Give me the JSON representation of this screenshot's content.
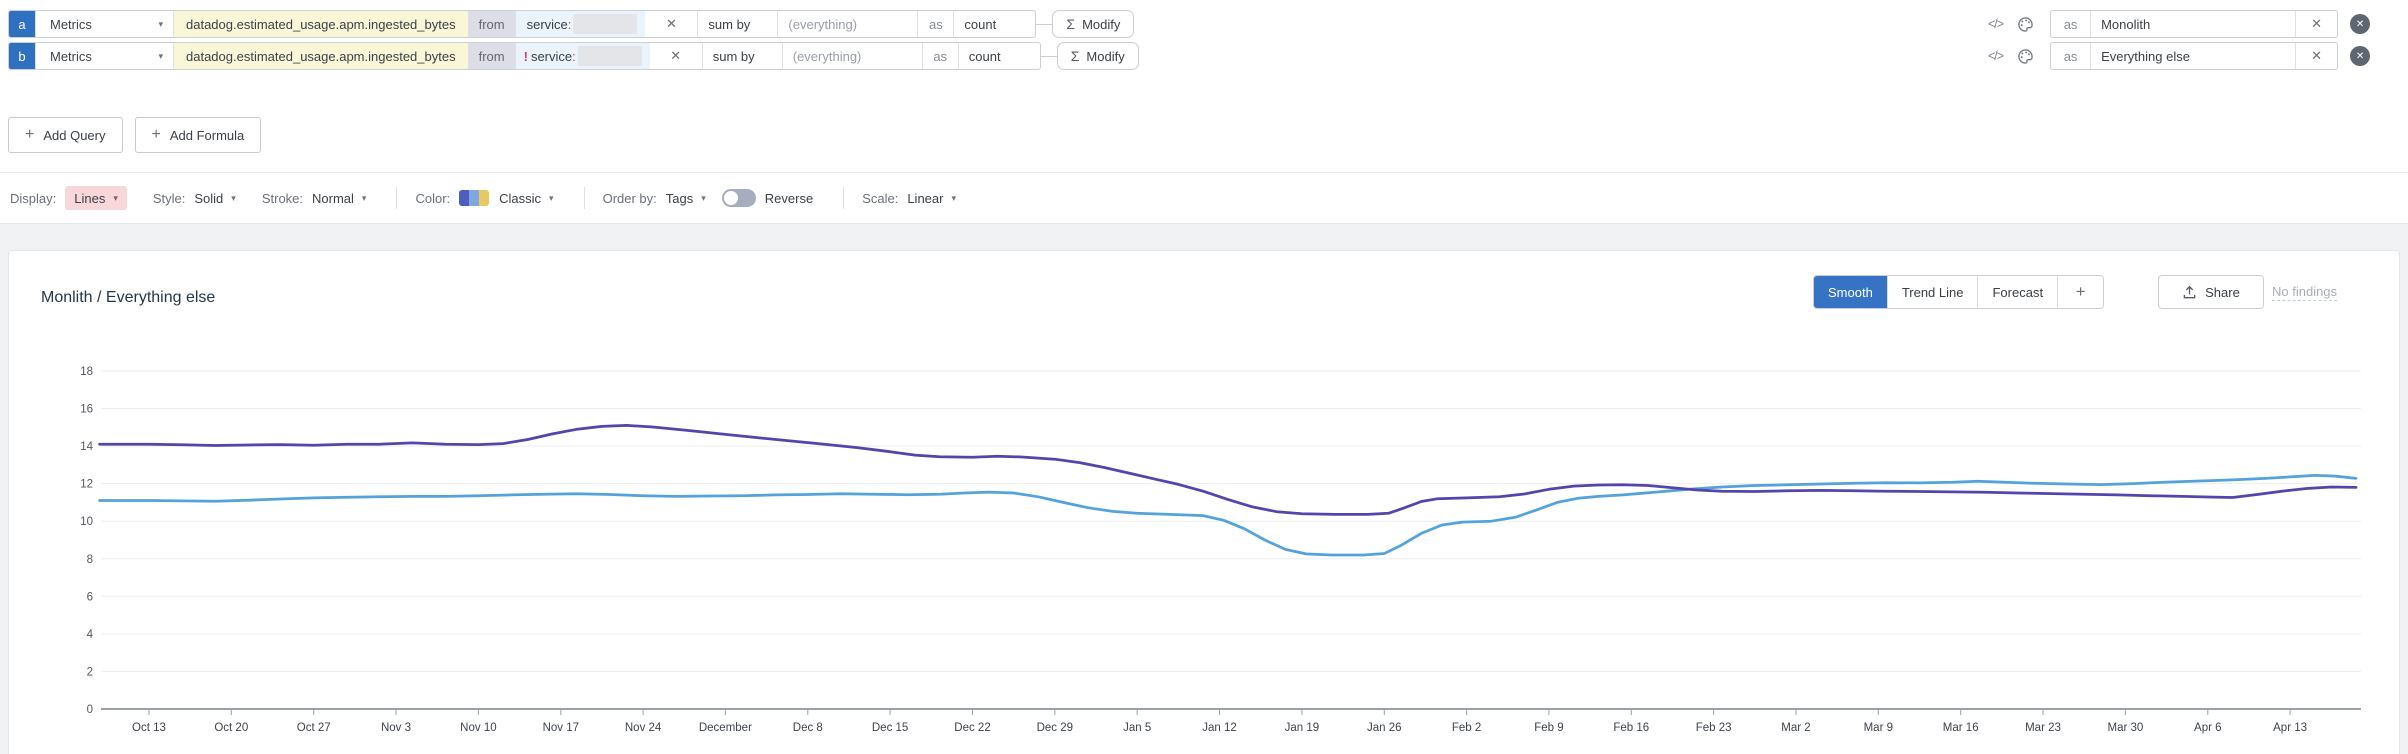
{
  "queries": [
    {
      "letter": "a",
      "source": "Metrics",
      "metric": "datadog.estimated_usage.apm.ingested_bytes",
      "from_label": "from",
      "filter_negation": "",
      "filter_key": "service",
      "filter_colon": ":",
      "remove_filter": "✕",
      "sum_by_label": "sum by",
      "group_placeholder": "(everything)",
      "as_label": "as",
      "rollup": "count",
      "sigma": "Σ",
      "modify_label": "Modify",
      "code_icon": "</>",
      "alias_prefix": "as",
      "alias": "Monolith",
      "clear_alias": "✕",
      "remove_query": "✕"
    },
    {
      "letter": "b",
      "source": "Metrics",
      "metric": "datadog.estimated_usage.apm.ingested_bytes",
      "from_label": "from",
      "filter_negation": "!",
      "filter_key": "service",
      "filter_colon": ":",
      "remove_filter": "✕",
      "sum_by_label": "sum by",
      "group_placeholder": "(everything)",
      "as_label": "as",
      "rollup": "count",
      "sigma": "Σ",
      "modify_label": "Modify",
      "code_icon": "</>",
      "alias_prefix": "as",
      "alias": "Everything else",
      "clear_alias": "✕",
      "remove_query": "✕"
    }
  ],
  "toolbar": {
    "plus": "+",
    "add_query": "Add Query",
    "add_formula": "Add Formula"
  },
  "options": {
    "display_label": "Display:",
    "display_value": "Lines",
    "style_label": "Style:",
    "style_value": "Solid",
    "stroke_label": "Stroke:",
    "stroke_value": "Normal",
    "color_label": "Color:",
    "color_value": "Classic",
    "order_label": "Order by:",
    "order_value": "Tags",
    "reverse_label": "Reverse",
    "scale_label": "Scale:",
    "scale_value": "Linear",
    "caret": "▾"
  },
  "chart": {
    "title": "Monlith / Everything else",
    "buttons": {
      "smooth": "Smooth",
      "trend": "Trend Line",
      "forecast": "Forecast",
      "plus": "+",
      "share": "Share",
      "no_findings": "No findings"
    }
  },
  "colors": {
    "query_badge_blue": "#3070c0",
    "metric_pill_yellow": "#faf7d9",
    "filter_blue": "#ebf3fb",
    "negation_pink": "#cf3c78",
    "lines_chip_pink": "#f7d7da",
    "active_button_blue": "#3673c5",
    "series_monolith_purple": "#5445ae",
    "series_everything_else_blue": "#54a2dc"
  },
  "chart_data": {
    "type": "line",
    "title": "Monlith / Everything else",
    "xlabel": "",
    "ylabel": "",
    "ylim": [
      0,
      18
    ],
    "yticks": [
      0,
      2,
      4,
      6,
      8,
      10,
      12,
      14,
      16,
      18
    ],
    "grid": true,
    "legend_position": "none",
    "x_tick_labels": [
      "Oct 13",
      "Oct 20",
      "Oct 27",
      "Nov 3",
      "Nov 10",
      "Nov 17",
      "Nov 24",
      "December",
      "Dec 8",
      "Dec 15",
      "Dec 22",
      "Dec 29",
      "Jan 5",
      "Jan 12",
      "Jan 19",
      "Jan 26",
      "Feb 2",
      "Feb 9",
      "Feb 16",
      "Feb 23",
      "Mar 2",
      "Mar 9",
      "Mar 16",
      "Mar 23",
      "Mar 30",
      "Apr 6",
      "Apr 13"
    ],
    "x_unit": "weeks offset from Oct 13",
    "series": [
      {
        "name": "Monolith",
        "color": "#5445ae",
        "points": [
          [
            -0.6,
            14.1
          ],
          [
            0,
            14.1
          ],
          [
            0.4,
            14.07
          ],
          [
            0.8,
            14.03
          ],
          [
            1.2,
            14.06
          ],
          [
            1.6,
            14.08
          ],
          [
            2,
            14.04
          ],
          [
            2.4,
            14.1
          ],
          [
            2.8,
            14.1
          ],
          [
            3.2,
            14.17
          ],
          [
            3.6,
            14.1
          ],
          [
            4,
            14.08
          ],
          [
            4.3,
            14.13
          ],
          [
            4.6,
            14.35
          ],
          [
            4.9,
            14.65
          ],
          [
            5.2,
            14.9
          ],
          [
            5.5,
            15.05
          ],
          [
            5.8,
            15.1
          ],
          [
            6.1,
            15.02
          ],
          [
            6.4,
            14.9
          ],
          [
            6.7,
            14.76
          ],
          [
            7,
            14.62
          ],
          [
            7.4,
            14.44
          ],
          [
            7.8,
            14.27
          ],
          [
            8.2,
            14.1
          ],
          [
            8.6,
            13.92
          ],
          [
            9,
            13.7
          ],
          [
            9.3,
            13.52
          ],
          [
            9.6,
            13.43
          ],
          [
            10,
            13.4
          ],
          [
            10.3,
            13.46
          ],
          [
            10.6,
            13.42
          ],
          [
            11,
            13.3
          ],
          [
            11.3,
            13.12
          ],
          [
            11.6,
            12.86
          ],
          [
            11.9,
            12.56
          ],
          [
            12.2,
            12.26
          ],
          [
            12.5,
            11.96
          ],
          [
            12.8,
            11.6
          ],
          [
            13.1,
            11.16
          ],
          [
            13.4,
            10.76
          ],
          [
            13.7,
            10.5
          ],
          [
            14,
            10.4
          ],
          [
            14.4,
            10.36
          ],
          [
            14.8,
            10.36
          ],
          [
            15.05,
            10.42
          ],
          [
            15.25,
            10.72
          ],
          [
            15.45,
            11.05
          ],
          [
            15.65,
            11.2
          ],
          [
            16,
            11.24
          ],
          [
            16.4,
            11.3
          ],
          [
            16.7,
            11.45
          ],
          [
            17,
            11.7
          ],
          [
            17.3,
            11.87
          ],
          [
            17.6,
            11.93
          ],
          [
            17.9,
            11.94
          ],
          [
            18.2,
            11.9
          ],
          [
            18.5,
            11.78
          ],
          [
            18.8,
            11.66
          ],
          [
            19.1,
            11.6
          ],
          [
            19.5,
            11.58
          ],
          [
            19.9,
            11.62
          ],
          [
            20.3,
            11.64
          ],
          [
            20.7,
            11.62
          ],
          [
            21.1,
            11.6
          ],
          [
            21.5,
            11.58
          ],
          [
            21.9,
            11.56
          ],
          [
            22.3,
            11.54
          ],
          [
            22.7,
            11.5
          ],
          [
            23.1,
            11.47
          ],
          [
            23.5,
            11.44
          ],
          [
            23.9,
            11.4
          ],
          [
            24.3,
            11.36
          ],
          [
            24.7,
            11.32
          ],
          [
            25,
            11.29
          ],
          [
            25.3,
            11.26
          ],
          [
            25.6,
            11.42
          ],
          [
            25.9,
            11.6
          ],
          [
            26.2,
            11.74
          ],
          [
            26.5,
            11.82
          ],
          [
            26.8,
            11.8
          ]
        ]
      },
      {
        "name": "Everything else",
        "color": "#54a2dc",
        "points": [
          [
            -0.6,
            11.1
          ],
          [
            0,
            11.1
          ],
          [
            0.4,
            11.08
          ],
          [
            0.8,
            11.06
          ],
          [
            1.2,
            11.12
          ],
          [
            1.6,
            11.18
          ],
          [
            2,
            11.24
          ],
          [
            2.4,
            11.28
          ],
          [
            2.8,
            11.3
          ],
          [
            3.2,
            11.32
          ],
          [
            3.6,
            11.32
          ],
          [
            4,
            11.35
          ],
          [
            4.4,
            11.4
          ],
          [
            4.8,
            11.44
          ],
          [
            5.2,
            11.46
          ],
          [
            5.6,
            11.42
          ],
          [
            6,
            11.35
          ],
          [
            6.4,
            11.32
          ],
          [
            6.8,
            11.34
          ],
          [
            7.2,
            11.36
          ],
          [
            7.6,
            11.4
          ],
          [
            8,
            11.42
          ],
          [
            8.4,
            11.46
          ],
          [
            8.8,
            11.44
          ],
          [
            9.2,
            11.41
          ],
          [
            9.6,
            11.44
          ],
          [
            9.9,
            11.5
          ],
          [
            10.2,
            11.55
          ],
          [
            10.5,
            11.5
          ],
          [
            10.8,
            11.3
          ],
          [
            11.1,
            11.0
          ],
          [
            11.4,
            10.72
          ],
          [
            11.7,
            10.52
          ],
          [
            12,
            10.42
          ],
          [
            12.4,
            10.36
          ],
          [
            12.8,
            10.3
          ],
          [
            13.05,
            10.05
          ],
          [
            13.3,
            9.6
          ],
          [
            13.55,
            9.0
          ],
          [
            13.8,
            8.5
          ],
          [
            14.05,
            8.26
          ],
          [
            14.35,
            8.2
          ],
          [
            14.75,
            8.2
          ],
          [
            15,
            8.28
          ],
          [
            15.2,
            8.7
          ],
          [
            15.45,
            9.35
          ],
          [
            15.7,
            9.8
          ],
          [
            15.95,
            9.95
          ],
          [
            16.3,
            10.0
          ],
          [
            16.6,
            10.22
          ],
          [
            16.85,
            10.6
          ],
          [
            17.1,
            11.0
          ],
          [
            17.35,
            11.22
          ],
          [
            17.6,
            11.32
          ],
          [
            17.9,
            11.4
          ],
          [
            18.3,
            11.55
          ],
          [
            18.7,
            11.7
          ],
          [
            19.1,
            11.82
          ],
          [
            19.5,
            11.9
          ],
          [
            19.9,
            11.94
          ],
          [
            20.3,
            11.98
          ],
          [
            20.7,
            12.02
          ],
          [
            21.1,
            12.05
          ],
          [
            21.5,
            12.04
          ],
          [
            21.9,
            12.07
          ],
          [
            22.2,
            12.13
          ],
          [
            22.5,
            12.08
          ],
          [
            22.9,
            12.02
          ],
          [
            23.3,
            11.98
          ],
          [
            23.7,
            11.95
          ],
          [
            24.1,
            12.0
          ],
          [
            24.5,
            12.08
          ],
          [
            24.9,
            12.14
          ],
          [
            25.3,
            12.2
          ],
          [
            25.7,
            12.28
          ],
          [
            26,
            12.36
          ],
          [
            26.3,
            12.44
          ],
          [
            26.55,
            12.4
          ],
          [
            26.8,
            12.28
          ]
        ]
      }
    ]
  }
}
